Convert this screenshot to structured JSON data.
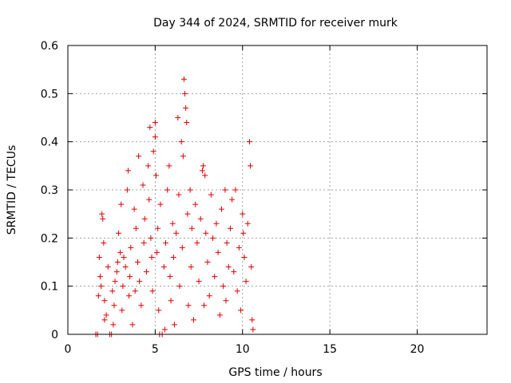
{
  "chart_data": {
    "type": "scatter",
    "title": "Day 344 of 2024, SRMTID for receiver murk",
    "xlabel": "GPS time / hours",
    "ylabel": "SRMTID / TECUs",
    "xlim": [
      0,
      24
    ],
    "ylim": [
      0,
      0.6
    ],
    "xticks": [
      0,
      5,
      10,
      15,
      20
    ],
    "yticks": [
      0,
      0.1,
      0.2,
      0.3,
      0.4,
      0.5,
      0.6
    ],
    "grid": true,
    "legend": "none",
    "marker": "plus",
    "color": "#e00000",
    "series": [
      {
        "points": [
          [
            1.6,
            0.0
          ],
          [
            1.7,
            0.0
          ],
          [
            1.75,
            0.08
          ],
          [
            1.8,
            0.16
          ],
          [
            1.85,
            0.12
          ],
          [
            1.9,
            0.1
          ],
          [
            1.95,
            0.25
          ],
          [
            2.0,
            0.24
          ],
          [
            2.05,
            0.19
          ],
          [
            2.1,
            0.07
          ],
          [
            2.1,
            0.03
          ],
          [
            2.2,
            0.04
          ],
          [
            2.3,
            0.14
          ],
          [
            2.4,
            0.0
          ],
          [
            2.5,
            0.0
          ],
          [
            2.55,
            0.09
          ],
          [
            2.6,
            0.02
          ],
          [
            2.65,
            0.06
          ],
          [
            2.7,
            0.11
          ],
          [
            2.8,
            0.13
          ],
          [
            2.85,
            0.15
          ],
          [
            2.9,
            0.21
          ],
          [
            3.0,
            0.17
          ],
          [
            3.05,
            0.27
          ],
          [
            3.1,
            0.05
          ],
          [
            3.15,
            0.1
          ],
          [
            3.2,
            0.16
          ],
          [
            3.3,
            0.14
          ],
          [
            3.4,
            0.3
          ],
          [
            3.45,
            0.34
          ],
          [
            3.5,
            0.08
          ],
          [
            3.55,
            0.12
          ],
          [
            3.6,
            0.18
          ],
          [
            3.7,
            0.02
          ],
          [
            3.8,
            0.26
          ],
          [
            3.85,
            0.09
          ],
          [
            3.9,
            0.22
          ],
          [
            4.0,
            0.15
          ],
          [
            4.05,
            0.37
          ],
          [
            4.1,
            0.11
          ],
          [
            4.2,
            0.06
          ],
          [
            4.3,
            0.31
          ],
          [
            4.35,
            0.19
          ],
          [
            4.4,
            0.24
          ],
          [
            4.5,
            0.13
          ],
          [
            4.6,
            0.35
          ],
          [
            4.65,
            0.28
          ],
          [
            4.7,
            0.43
          ],
          [
            4.75,
            0.2
          ],
          [
            4.8,
            0.16
          ],
          [
            4.85,
            0.09
          ],
          [
            4.9,
            0.38
          ],
          [
            5.0,
            0.44
          ],
          [
            5.0,
            0.41
          ],
          [
            5.05,
            0.33
          ],
          [
            5.1,
            0.17
          ],
          [
            5.15,
            0.22
          ],
          [
            5.2,
            0.05
          ],
          [
            5.25,
            0.0
          ],
          [
            5.3,
            0.27
          ],
          [
            5.4,
            0.0
          ],
          [
            5.5,
            0.14
          ],
          [
            5.55,
            0.01
          ],
          [
            5.6,
            0.19
          ],
          [
            5.7,
            0.3
          ],
          [
            5.8,
            0.35
          ],
          [
            5.85,
            0.12
          ],
          [
            5.9,
            0.07
          ],
          [
            6.0,
            0.23
          ],
          [
            6.05,
            0.16
          ],
          [
            6.1,
            0.02
          ],
          [
            6.2,
            0.21
          ],
          [
            6.3,
            0.45
          ],
          [
            6.35,
            0.29
          ],
          [
            6.4,
            0.1
          ],
          [
            6.5,
            0.4
          ],
          [
            6.55,
            0.18
          ],
          [
            6.6,
            0.37
          ],
          [
            6.65,
            0.53
          ],
          [
            6.7,
            0.5
          ],
          [
            6.75,
            0.47
          ],
          [
            6.8,
            0.44
          ],
          [
            6.85,
            0.25
          ],
          [
            6.9,
            0.06
          ],
          [
            7.0,
            0.3
          ],
          [
            7.05,
            0.14
          ],
          [
            7.1,
            0.22
          ],
          [
            7.2,
            0.03
          ],
          [
            7.3,
            0.27
          ],
          [
            7.4,
            0.19
          ],
          [
            7.5,
            0.11
          ],
          [
            7.6,
            0.24
          ],
          [
            7.7,
            0.34
          ],
          [
            7.75,
            0.35
          ],
          [
            7.8,
            0.06
          ],
          [
            7.85,
            0.33
          ],
          [
            7.9,
            0.21
          ],
          [
            8.0,
            0.15
          ],
          [
            8.1,
            0.08
          ],
          [
            8.2,
            0.29
          ],
          [
            8.3,
            0.2
          ],
          [
            8.4,
            0.12
          ],
          [
            8.5,
            0.23
          ],
          [
            8.6,
            0.17
          ],
          [
            8.7,
            0.04
          ],
          [
            8.8,
            0.26
          ],
          [
            8.9,
            0.1
          ],
          [
            9.0,
            0.3
          ],
          [
            9.05,
            0.07
          ],
          [
            9.1,
            0.19
          ],
          [
            9.2,
            0.14
          ],
          [
            9.3,
            0.22
          ],
          [
            9.4,
            0.28
          ],
          [
            9.5,
            0.13
          ],
          [
            9.6,
            0.3
          ],
          [
            9.7,
            0.09
          ],
          [
            9.8,
            0.18
          ],
          [
            9.9,
            0.05
          ],
          [
            10.0,
            0.25
          ],
          [
            10.05,
            0.21
          ],
          [
            10.1,
            0.16
          ],
          [
            10.2,
            0.11
          ],
          [
            10.3,
            0.23
          ],
          [
            10.4,
            0.4
          ],
          [
            10.45,
            0.35
          ],
          [
            10.5,
            0.14
          ],
          [
            10.55,
            0.03
          ],
          [
            10.6,
            0.01
          ]
        ]
      }
    ]
  }
}
